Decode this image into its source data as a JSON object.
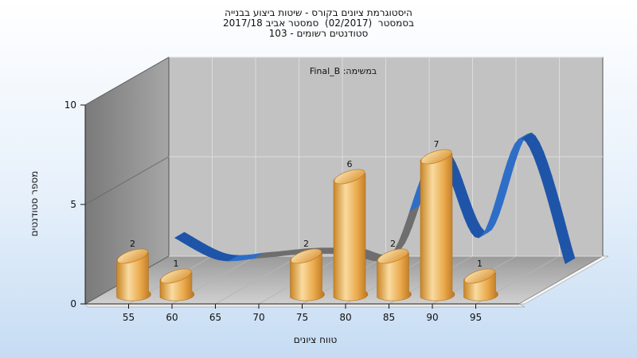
{
  "chart_data": {
    "type": "bar",
    "title_lines": [
      "היסטוגרמת ציונים בקורס - שיטות ביצוע בבנייה",
      "בסמסטר  (02/2017)  סמסטר אביב 2017/18",
      "סטודנטים רשומים - 103"
    ],
    "annotation": "במשימה: Final_B",
    "xlabel": "טווח ציונים",
    "ylabel": "מספר סטודנטים",
    "x_ticks": [
      "55",
      "60",
      "65",
      "70",
      "75",
      "80",
      "85",
      "90",
      "95"
    ],
    "y_ticks": [
      "0",
      "5",
      "10"
    ],
    "ylim": [
      0,
      10
    ],
    "series": [
      {
        "type": "bar",
        "x": [
          55,
          60,
          75,
          80,
          85,
          90,
          95
        ],
        "values": [
          2,
          1,
          2,
          6,
          2,
          7,
          1
        ],
        "labels": [
          "2",
          "1",
          "2",
          "6",
          "2",
          "7",
          "1"
        ]
      },
      {
        "type": "line",
        "x": [
          55,
          60,
          65,
          70,
          75,
          80,
          85,
          90,
          95,
          100
        ],
        "values": [
          2.0,
          0.9,
          1.0,
          1.2,
          1.2,
          1.2,
          6.1,
          2.0,
          7.0,
          0.7
        ]
      }
    ],
    "colors": {
      "bar_light": "#f9dba0",
      "bar_mid": "#e9a84a",
      "bar_dark": "#b97420",
      "ribbon_front": "#2f6ec7",
      "ribbon_back": "#1f55a8",
      "ribbon_gray": "#6e6e6e"
    },
    "grid": true
  }
}
